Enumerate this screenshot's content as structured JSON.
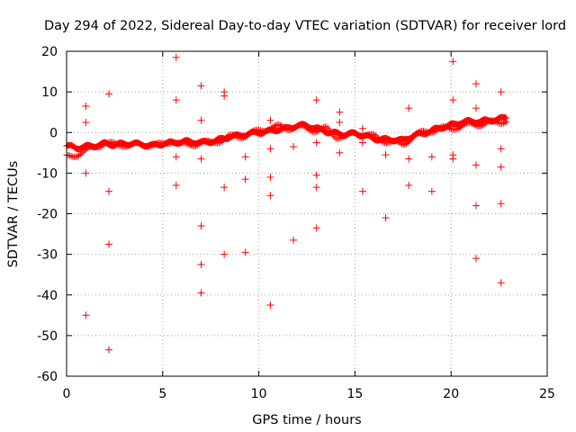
{
  "chart_data": {
    "type": "scatter",
    "title": "Day 294 of 2022, Sidereal Day-to-day VTEC variation (SDTVAR) for receiver lord",
    "xlabel": "GPS time / hours",
    "ylabel": "SDTVAR / TECUs",
    "xlim": [
      0,
      25
    ],
    "ylim": [
      -60,
      20
    ],
    "xticks": [
      0,
      5,
      10,
      15,
      20,
      25
    ],
    "yticks": [
      -60,
      -50,
      -40,
      -30,
      -20,
      -10,
      0,
      10,
      20
    ],
    "grid": true,
    "marker": "+",
    "color": "#ff0000",
    "series": [
      {
        "name": "SDTVAR",
        "band": [
          [
            0.0,
            -3.5
          ],
          [
            0.5,
            -4.0
          ],
          [
            1.0,
            -3.5
          ],
          [
            1.5,
            -3.0
          ],
          [
            2.0,
            -2.5
          ],
          [
            2.5,
            -3.0
          ],
          [
            3.0,
            -3.0
          ],
          [
            3.5,
            -3.0
          ],
          [
            4.0,
            -3.0
          ],
          [
            4.5,
            -3.0
          ],
          [
            5.0,
            -2.5
          ],
          [
            5.5,
            -2.5
          ],
          [
            6.0,
            -2.5
          ],
          [
            6.5,
            -2.5
          ],
          [
            7.0,
            -2.5
          ],
          [
            7.5,
            -2.0
          ],
          [
            8.0,
            -1.5
          ],
          [
            8.5,
            -1.0
          ],
          [
            9.0,
            -1.0
          ],
          [
            9.5,
            -0.5
          ],
          [
            10.0,
            0.0
          ],
          [
            10.5,
            0.5
          ],
          [
            11.0,
            1.0
          ],
          [
            11.5,
            1.0
          ],
          [
            12.0,
            1.5
          ],
          [
            12.5,
            1.5
          ],
          [
            13.0,
            1.0
          ],
          [
            13.5,
            0.5
          ],
          [
            14.0,
            0.0
          ],
          [
            14.5,
            -0.5
          ],
          [
            15.0,
            -0.5
          ],
          [
            15.5,
            -1.0
          ],
          [
            16.0,
            -1.5
          ],
          [
            16.5,
            -1.5
          ],
          [
            17.0,
            -1.5
          ],
          [
            17.5,
            -2.0
          ],
          [
            18.0,
            -1.0
          ],
          [
            18.5,
            -0.5
          ],
          [
            19.0,
            0.5
          ],
          [
            19.5,
            1.5
          ],
          [
            20.0,
            2.0
          ],
          [
            20.5,
            2.5
          ],
          [
            21.0,
            2.5
          ],
          [
            21.5,
            2.5
          ],
          [
            22.0,
            3.0
          ],
          [
            22.5,
            3.5
          ],
          [
            22.9,
            4.0
          ]
        ],
        "secondary_band": [
          [
            0.0,
            -6.0
          ],
          [
            0.5,
            -5.5
          ],
          [
            1.0,
            -4.5
          ],
          [
            1.5,
            -3.5
          ],
          [
            2.0,
            -2.5
          ],
          [
            2.5,
            -3.0
          ],
          [
            3.0,
            -3.0
          ],
          [
            3.5,
            -3.0
          ],
          [
            4.0,
            -3.0
          ],
          [
            4.5,
            -3.0
          ],
          [
            5.0,
            -3.0
          ],
          [
            5.5,
            -2.0
          ],
          [
            6.0,
            -3.0
          ],
          [
            6.5,
            -3.0
          ],
          [
            7.0,
            -2.5
          ],
          [
            7.5,
            -2.5
          ],
          [
            8.0,
            -2.0
          ],
          [
            8.5,
            -1.0
          ],
          [
            9.0,
            -1.0
          ],
          [
            9.5,
            -0.5
          ],
          [
            10.0,
            0.5
          ],
          [
            10.5,
            1.0
          ],
          [
            11.0,
            1.5
          ],
          [
            11.5,
            1.0
          ],
          [
            12.0,
            1.5
          ],
          [
            12.5,
            1.0
          ],
          [
            13.0,
            0.5
          ],
          [
            13.5,
            1.0
          ],
          [
            14.0,
            -1.0
          ],
          [
            14.5,
            -1.0
          ],
          [
            15.0,
            0.0
          ],
          [
            15.5,
            -0.5
          ],
          [
            16.0,
            -1.0
          ],
          [
            16.5,
            -2.0
          ],
          [
            17.0,
            -2.5
          ],
          [
            17.5,
            -3.0
          ],
          [
            18.0,
            -1.0
          ],
          [
            18.5,
            0.0
          ],
          [
            19.0,
            0.5
          ],
          [
            19.5,
            1.0
          ],
          [
            20.0,
            1.0
          ],
          [
            20.5,
            1.5
          ],
          [
            21.0,
            2.0
          ],
          [
            21.5,
            2.0
          ],
          [
            22.0,
            2.5
          ],
          [
            22.5,
            2.5
          ],
          [
            22.9,
            3.0
          ]
        ],
        "outliers": [
          [
            1.0,
            6.5
          ],
          [
            1.0,
            2.5
          ],
          [
            1.0,
            -10.0
          ],
          [
            1.0,
            -45.0
          ],
          [
            2.2,
            9.5
          ],
          [
            2.2,
            -14.5
          ],
          [
            2.2,
            -27.5
          ],
          [
            2.2,
            -53.5
          ],
          [
            5.7,
            18.5
          ],
          [
            5.7,
            8.0
          ],
          [
            5.7,
            -6.0
          ],
          [
            5.7,
            -13.0
          ],
          [
            7.0,
            11.5
          ],
          [
            7.0,
            3.0
          ],
          [
            7.0,
            -6.5
          ],
          [
            7.0,
            -23.0
          ],
          [
            7.0,
            -32.5
          ],
          [
            7.0,
            -39.5
          ],
          [
            8.2,
            10.0
          ],
          [
            8.2,
            9.0
          ],
          [
            8.2,
            -13.5
          ],
          [
            8.2,
            -30.0
          ],
          [
            9.3,
            -6.0
          ],
          [
            9.3,
            -11.5
          ],
          [
            9.3,
            -29.5
          ],
          [
            10.6,
            3.0
          ],
          [
            10.6,
            -4.0
          ],
          [
            10.6,
            -11.0
          ],
          [
            10.6,
            -15.5
          ],
          [
            10.6,
            -42.5
          ],
          [
            11.8,
            -3.5
          ],
          [
            11.8,
            -26.5
          ],
          [
            13.0,
            8.0
          ],
          [
            13.0,
            -2.5
          ],
          [
            13.0,
            -10.5
          ],
          [
            13.0,
            -13.5
          ],
          [
            13.0,
            -23.5
          ],
          [
            14.2,
            5.0
          ],
          [
            14.2,
            2.5
          ],
          [
            14.2,
            -5.0
          ],
          [
            15.4,
            1.0
          ],
          [
            15.4,
            -2.5
          ],
          [
            15.4,
            -14.5
          ],
          [
            16.6,
            -5.5
          ],
          [
            16.6,
            -21.0
          ],
          [
            17.8,
            6.0
          ],
          [
            17.8,
            -6.5
          ],
          [
            17.8,
            -13.0
          ],
          [
            19.0,
            -6.0
          ],
          [
            19.0,
            -14.5
          ],
          [
            20.1,
            17.5
          ],
          [
            20.1,
            8.0
          ],
          [
            20.1,
            -5.5
          ],
          [
            20.1,
            -6.5
          ],
          [
            21.3,
            12.0
          ],
          [
            21.3,
            6.0
          ],
          [
            21.3,
            -8.0
          ],
          [
            21.3,
            -18.0
          ],
          [
            21.3,
            -31.0
          ],
          [
            22.6,
            10.0
          ],
          [
            22.6,
            -4.0
          ],
          [
            22.6,
            -8.5
          ],
          [
            22.6,
            -17.5
          ],
          [
            22.6,
            -37.0
          ]
        ]
      }
    ]
  }
}
